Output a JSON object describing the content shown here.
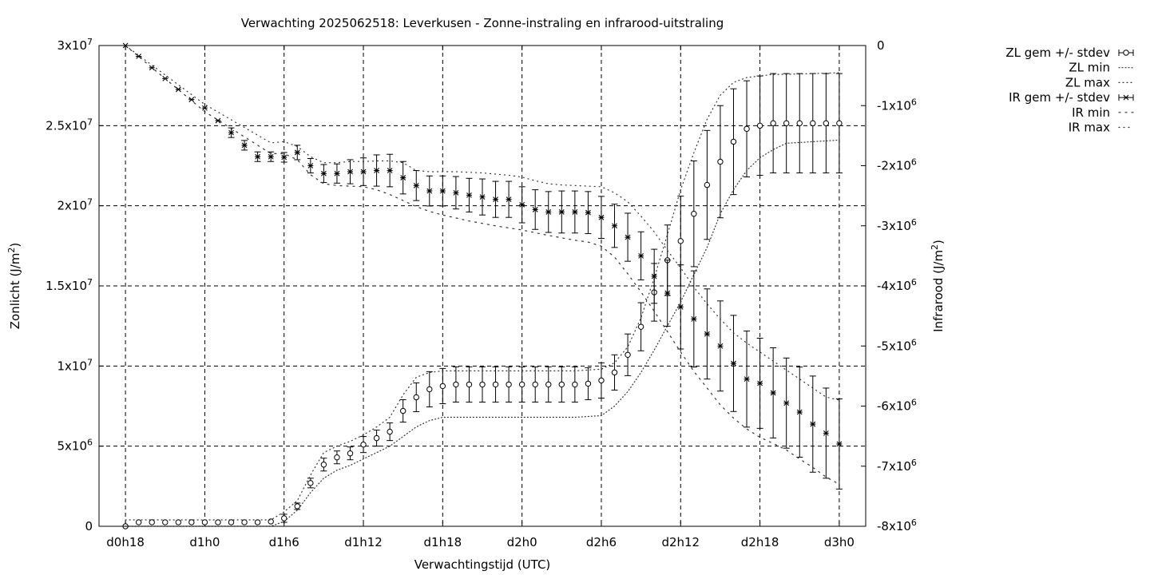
{
  "chart_data": {
    "type": "line",
    "title": "Verwachting 2025062518: Leverkusen - Zonne-instraling en infrarood-uitstraling",
    "xlabel": "Verwachtingstijd (UTC)",
    "ylabel": "Zonlicht (J/m2)",
    "y2label": "Infrarood (J/m2)",
    "x_unit": "hours since d0h18",
    "x_ticks": [
      {
        "x": 0,
        "label": "d0h18"
      },
      {
        "x": 6,
        "label": "d1h0"
      },
      {
        "x": 12,
        "label": "d1h6"
      },
      {
        "x": 18,
        "label": "d1h12"
      },
      {
        "x": 24,
        "label": "d1h18"
      },
      {
        "x": 30,
        "label": "d2h0"
      },
      {
        "x": 36,
        "label": "d2h6"
      },
      {
        "x": 42,
        "label": "d2h12"
      },
      {
        "x": 48,
        "label": "d2h18"
      },
      {
        "x": 54,
        "label": "d3h0"
      }
    ],
    "xlim": [
      -2,
      56
    ],
    "ylim": [
      0,
      30000000
    ],
    "y2lim": [
      -8000000,
      0
    ],
    "y_ticks": [
      {
        "v": 0,
        "m": "0",
        "e": ""
      },
      {
        "v": 5000000,
        "m": "5x10",
        "e": "6"
      },
      {
        "v": 10000000,
        "m": "1x10",
        "e": "7"
      },
      {
        "v": 15000000,
        "m": "1.5x10",
        "e": "7"
      },
      {
        "v": 20000000,
        "m": "2x10",
        "e": "7"
      },
      {
        "v": 25000000,
        "m": "2.5x10",
        "e": "7"
      },
      {
        "v": 30000000,
        "m": "3x10",
        "e": "7"
      }
    ],
    "y2_ticks": [
      {
        "v": 0,
        "m": "0",
        "e": ""
      },
      {
        "v": -1000000,
        "m": "-1x10",
        "e": "6"
      },
      {
        "v": -2000000,
        "m": "-2x10",
        "e": "6"
      },
      {
        "v": -3000000,
        "m": "-3x10",
        "e": "6"
      },
      {
        "v": -4000000,
        "m": "-4x10",
        "e": "6"
      },
      {
        "v": -5000000,
        "m": "-5x10",
        "e": "6"
      },
      {
        "v": -6000000,
        "m": "-6x10",
        "e": "6"
      },
      {
        "v": -7000000,
        "m": "-7x10",
        "e": "6"
      },
      {
        "v": -8000000,
        "m": "-8x10",
        "e": "6"
      }
    ],
    "grid": true,
    "legend_position": "outside-right",
    "legend": [
      "ZL gem +/- stdev",
      "ZL min",
      "ZL max",
      "IR gem +/- stdev",
      "IR min",
      "IR max"
    ],
    "series": [
      {
        "name": "ZL gem +/- stdev",
        "axis": "y",
        "marker": "circle",
        "x": [
          0,
          1,
          2,
          3,
          4,
          5,
          6,
          7,
          8,
          9,
          10,
          11,
          12,
          13,
          14,
          15,
          16,
          17,
          18,
          19,
          20,
          21,
          22,
          23,
          24,
          25,
          26,
          27,
          28,
          29,
          30,
          31,
          32,
          33,
          34,
          35,
          36,
          37,
          38,
          39,
          40,
          41,
          42,
          43,
          44,
          45,
          46,
          47,
          48,
          49,
          50,
          51,
          52,
          53,
          54
        ],
        "y": [
          0,
          250000,
          250000,
          250000,
          250000,
          250000,
          250000,
          250000,
          250000,
          250000,
          250000,
          300000,
          500000,
          1250000,
          2700000,
          3850000,
          4300000,
          4550000,
          5100000,
          5500000,
          5900000,
          7200000,
          8050000,
          8550000,
          8750000,
          8850000,
          8850000,
          8850000,
          8850000,
          8850000,
          8850000,
          8850000,
          8850000,
          8850000,
          8850000,
          8900000,
          9100000,
          9600000,
          10700000,
          12450000,
          14600000,
          16600000,
          17800000,
          19500000,
          21300000,
          22750000,
          24000000,
          24800000,
          25000000,
          25150000,
          25150000,
          25150000,
          25150000,
          25150000,
          25150000
        ],
        "sd": [
          0,
          0,
          0,
          0,
          0,
          0,
          0,
          0,
          0,
          0,
          0,
          0,
          250000,
          200000,
          300000,
          400000,
          400000,
          400000,
          500000,
          500000,
          550000,
          700000,
          900000,
          1100000,
          1100000,
          1100000,
          1100000,
          1100000,
          1100000,
          1100000,
          1100000,
          1100000,
          1100000,
          1100000,
          1100000,
          1000000,
          1100000,
          1100000,
          1300000,
          1500000,
          1800000,
          2200000,
          2800000,
          3300000,
          3400000,
          3500000,
          3300000,
          3000000,
          3100000,
          3100000,
          3100000,
          3100000,
          3100000,
          3100000,
          3100000
        ]
      },
      {
        "name": "ZL min",
        "axis": "y",
        "style": "dotted",
        "x": [
          0,
          11,
          12,
          13,
          14,
          15,
          16,
          17,
          18,
          19,
          20,
          21,
          22,
          23,
          24,
          26,
          28,
          30,
          32,
          34,
          36,
          37,
          38,
          39,
          40,
          41,
          42,
          43,
          44,
          45,
          46,
          47,
          48,
          49,
          50,
          54
        ],
        "y": [
          0,
          0,
          300000,
          1000000,
          2100000,
          3000000,
          3500000,
          3800000,
          4200000,
          4600000,
          5000000,
          5600000,
          6200000,
          6600000,
          6800000,
          6800000,
          6800000,
          6800000,
          6800000,
          6800000,
          6900000,
          7500000,
          8400000,
          9600000,
          11000000,
          12500000,
          14000000,
          15700000,
          17400000,
          19500000,
          21000000,
          22200000,
          23000000,
          23500000,
          23900000,
          24100000
        ]
      },
      {
        "name": "ZL max",
        "axis": "y",
        "style": "dotted",
        "x": [
          0,
          11,
          12,
          13,
          14,
          15,
          16,
          17,
          18,
          19,
          20,
          21,
          22,
          23,
          24,
          25,
          26,
          28,
          30,
          32,
          34,
          36,
          37,
          38,
          39,
          40,
          41,
          42,
          43,
          44,
          45,
          46,
          47,
          48,
          49,
          50,
          54
        ],
        "y": [
          400000,
          400000,
          900000,
          1600000,
          3200000,
          4600000,
          5000000,
          5300000,
          5700000,
          6200000,
          6800000,
          8200000,
          9300000,
          9600000,
          9700000,
          9700000,
          9700000,
          9700000,
          9700000,
          9700000,
          9700000,
          9800000,
          10200000,
          11200000,
          13000000,
          15500000,
          18200000,
          21000000,
          23300000,
          25400000,
          26900000,
          27700000,
          28000000,
          28100000,
          28200000,
          28200000,
          28300000
        ]
      },
      {
        "name": "IR gem +/- stdev",
        "axis": "y2",
        "marker": "star",
        "x": [
          0,
          1,
          2,
          3,
          4,
          5,
          6,
          7,
          8,
          9,
          10,
          11,
          12,
          13,
          14,
          15,
          16,
          17,
          18,
          19,
          20,
          21,
          22,
          23,
          24,
          25,
          26,
          27,
          28,
          29,
          30,
          31,
          32,
          33,
          34,
          35,
          36,
          37,
          38,
          39,
          40,
          41,
          42,
          43,
          44,
          45,
          46,
          47,
          48,
          49,
          50,
          51,
          52,
          53,
          54
        ],
        "y": [
          0,
          -180000,
          -370000,
          -550000,
          -730000,
          -900000,
          -1040000,
          -1250000,
          -1450000,
          -1660000,
          -1850000,
          -1850000,
          -1860000,
          -1780000,
          -2000000,
          -2130000,
          -2130000,
          -2100000,
          -2100000,
          -2080000,
          -2080000,
          -2200000,
          -2330000,
          -2420000,
          -2420000,
          -2450000,
          -2490000,
          -2520000,
          -2560000,
          -2560000,
          -2650000,
          -2730000,
          -2770000,
          -2770000,
          -2770000,
          -2780000,
          -2860000,
          -3000000,
          -3190000,
          -3500000,
          -3840000,
          -4120000,
          -4350000,
          -4550000,
          -4800000,
          -5000000,
          -5290000,
          -5550000,
          -5620000,
          -5780000,
          -5950000,
          -6100000,
          -6300000,
          -6450000,
          -6630000
        ],
        "sd": [
          0,
          0,
          0,
          0,
          0,
          0,
          0,
          0,
          80000,
          80000,
          80000,
          80000,
          80000,
          120000,
          120000,
          150000,
          160000,
          200000,
          230000,
          260000,
          270000,
          270000,
          250000,
          250000,
          250000,
          270000,
          280000,
          300000,
          300000,
          300000,
          300000,
          330000,
          340000,
          350000,
          350000,
          350000,
          350000,
          360000,
          400000,
          400000,
          450000,
          550000,
          700000,
          800000,
          750000,
          750000,
          800000,
          800000,
          750000,
          750000,
          750000,
          750000,
          800000,
          750000,
          750000
        ]
      },
      {
        "name": "IR min",
        "axis": "y2",
        "style": "dotted",
        "x": [
          0,
          6,
          11,
          12,
          13,
          14,
          15,
          16,
          17,
          18,
          19,
          20,
          21,
          22,
          23,
          24,
          26,
          28,
          30,
          32,
          34,
          35,
          36,
          37,
          38,
          39,
          40,
          41,
          42,
          43,
          44,
          45,
          46,
          47,
          48,
          49,
          50,
          51,
          52,
          53,
          54
        ],
        "y": [
          0,
          -1100000,
          -1800000,
          -1800000,
          -1900000,
          -2150000,
          -2300000,
          -2330000,
          -2340000,
          -2350000,
          -2400000,
          -2480000,
          -2580000,
          -2680000,
          -2760000,
          -2820000,
          -2920000,
          -3000000,
          -3070000,
          -3160000,
          -3240000,
          -3270000,
          -3340000,
          -3520000,
          -3800000,
          -4100000,
          -4420000,
          -4760000,
          -5100000,
          -5420000,
          -5700000,
          -5980000,
          -6200000,
          -6380000,
          -6520000,
          -6620000,
          -6730000,
          -6880000,
          -7020000,
          -7180000,
          -7300000
        ]
      },
      {
        "name": "IR max",
        "axis": "y2",
        "style": "dotted",
        "x": [
          0,
          6,
          11,
          12,
          13,
          14,
          15,
          16,
          17,
          18,
          19,
          20,
          21,
          22,
          23,
          24,
          25,
          26,
          27,
          28,
          29,
          30,
          31,
          32,
          33,
          34,
          35,
          36,
          37,
          38,
          39,
          40,
          41,
          42,
          43,
          44,
          45,
          46,
          47,
          48,
          49,
          50,
          51,
          52,
          53,
          54
        ],
        "y": [
          0,
          -980000,
          -1620000,
          -1600000,
          -1680000,
          -1850000,
          -1950000,
          -1950000,
          -1930000,
          -1930000,
          -1920000,
          -1920000,
          -1950000,
          -2080000,
          -2100000,
          -2100000,
          -2100000,
          -2110000,
          -2120000,
          -2140000,
          -2160000,
          -2190000,
          -2250000,
          -2300000,
          -2320000,
          -2330000,
          -2340000,
          -2350000,
          -2450000,
          -2600000,
          -2840000,
          -3100000,
          -3410000,
          -3700000,
          -4020000,
          -4300000,
          -4550000,
          -4780000,
          -4950000,
          -5100000,
          -5250000,
          -5400000,
          -5550000,
          -5700000,
          -5850000,
          -5900000
        ]
      }
    ]
  }
}
